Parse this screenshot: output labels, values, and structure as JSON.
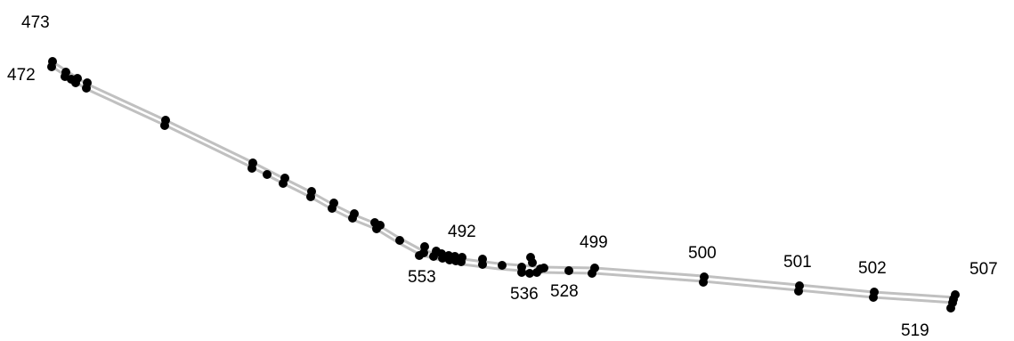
{
  "diagram": {
    "track_color": "#c0c0c0",
    "stop_color": "#000000",
    "labels": {
      "s473": "473",
      "s472": "472",
      "s492": "492",
      "s553": "553",
      "s499": "499",
      "s536": "536",
      "s528": "528",
      "s500": "500",
      "s501": "501",
      "s502": "502",
      "s507": "507",
      "s519": "519"
    }
  }
}
